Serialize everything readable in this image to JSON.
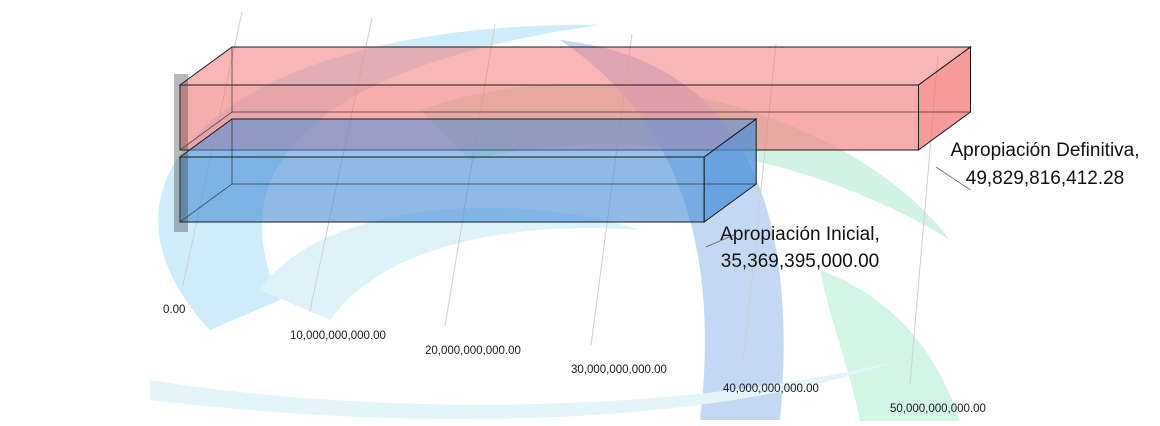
{
  "chart_data": {
    "type": "bar",
    "orientation": "horizontal",
    "style": "3d",
    "title": "",
    "xlabel": "",
    "ylabel": "",
    "xlim": [
      0,
      50000000000
    ],
    "grid": true,
    "legend": "none",
    "tick_labels": [
      "0.00",
      "10,000,000,000.00",
      "20,000,000,000.00",
      "30,000,000,000.00",
      "40,000,000,000.00",
      "50,000,000,000.00"
    ],
    "categories": [
      "Apropiación Definitiva",
      "Apropiación Inicial"
    ],
    "values": [
      49829816412.28,
      35369395000.0
    ],
    "data_labels": [
      {
        "category": "Apropiación Definitiva,",
        "value": "49,829,816,412.28"
      },
      {
        "category": "Apropiación Inicial,",
        "value": "35,369,395,000.00"
      }
    ],
    "colors": [
      "#f27a7a",
      "#4a90d9"
    ]
  }
}
